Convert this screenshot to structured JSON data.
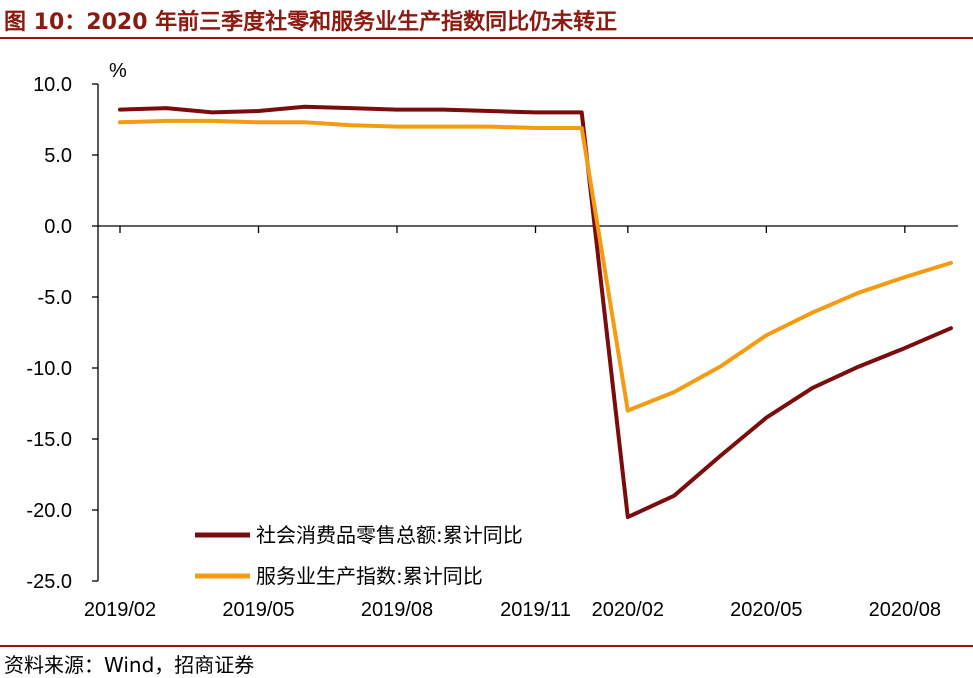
{
  "header": {
    "title": "图 10：2020 年前三季度社零和服务业生产指数同比仍未转正"
  },
  "footer": {
    "source": "资料来源：Wind，招商证券"
  },
  "chart_data": {
    "type": "line",
    "unit_label": "%",
    "ylim": [
      -25,
      10
    ],
    "yticks": [
      "10.0",
      "5.0",
      "0.0",
      "-5.0",
      "-10.0",
      "-15.0",
      "-20.0",
      "-25.0"
    ],
    "x": [
      "2019/02",
      "2019/03",
      "2019/04",
      "2019/05",
      "2019/06",
      "2019/07",
      "2019/08",
      "2019/09",
      "2019/10",
      "2019/11",
      "2019/12",
      "2020/02",
      "2020/03",
      "2020/04",
      "2020/05",
      "2020/06",
      "2020/07",
      "2020/08",
      "2020/09"
    ],
    "xticks": [
      "2019/02",
      "2019/05",
      "2019/08",
      "2019/11",
      "2020/02",
      "2020/05",
      "2020/08"
    ],
    "series": [
      {
        "name": "社会消费品零售总额:累计同比",
        "color": "#7b0c0c",
        "values": [
          8.2,
          8.3,
          8.0,
          8.1,
          8.4,
          8.3,
          8.2,
          8.2,
          8.1,
          8.0,
          8.0,
          -20.5,
          -19.0,
          -16.2,
          -13.5,
          -11.4,
          -9.9,
          -8.6,
          -7.2
        ]
      },
      {
        "name": "服务业生产指数:累计同比",
        "color": "#f49b12",
        "values": [
          7.3,
          7.4,
          7.4,
          7.3,
          7.3,
          7.1,
          7.0,
          7.0,
          7.0,
          6.9,
          6.9,
          -13.0,
          -11.7,
          -9.9,
          -7.7,
          -6.1,
          -4.7,
          -3.6,
          -2.6
        ]
      }
    ],
    "legend_position": "bottom-left"
  }
}
